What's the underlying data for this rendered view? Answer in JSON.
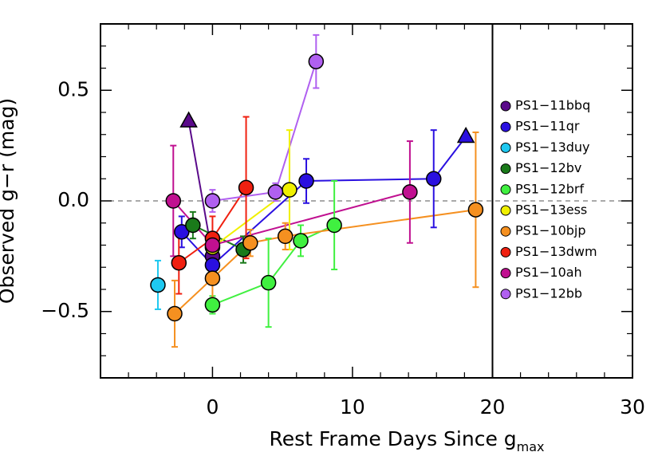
{
  "chart_data": {
    "type": "scatter",
    "xlabel": "Rest Frame Days Since g",
    "xlabel_subscript": "max",
    "ylabel": "Observed g−r (mag)",
    "xlim": [
      -8,
      30
    ],
    "ylim": [
      -0.8,
      0.8
    ],
    "xticks": [
      0,
      10,
      20,
      30
    ],
    "yticks": [
      {
        "value": -0.5,
        "label": "−0.5"
      },
      {
        "value": 0,
        "label": "0.0"
      },
      0.5
    ],
    "xminorticks": [
      -8,
      -6,
      -4,
      -2,
      2,
      4,
      6,
      8,
      12,
      14,
      16,
      18,
      22,
      24,
      26,
      28
    ],
    "yminorticks": [
      -0.8,
      -0.7,
      -0.6,
      -0.4,
      -0.3,
      -0.2,
      -0.1,
      0.1,
      0.2,
      0.3,
      0.4,
      0.6,
      0.7,
      0.8
    ],
    "reference_lines": {
      "x": 20,
      "y": 0
    },
    "series": [
      {
        "name": "PS1−11bbq",
        "color": "#5a0a8a",
        "x": [
          -1.7,
          0
        ],
        "values": [
          0.36,
          -0.25
        ],
        "errors": [
          null,
          0.05
        ],
        "markers": [
          "triangle",
          "circle"
        ]
      },
      {
        "name": "PS1−11qr",
        "color": "#2a10e0",
        "x": [
          -2.2,
          0,
          6.7,
          15.8,
          18.1
        ],
        "values": [
          -0.14,
          -0.29,
          0.09,
          0.1,
          0.29
        ],
        "errors": [
          0.07,
          0.05,
          0.1,
          0.22,
          null
        ],
        "markers": [
          "circle",
          "circle",
          "circle",
          "circle",
          "triangle"
        ]
      },
      {
        "name": "PS1−13duy",
        "color": "#1ec8f0",
        "x": [
          -3.9
        ],
        "values": [
          -0.38
        ],
        "errors": [
          0.11
        ],
        "markers": [
          "circle"
        ]
      },
      {
        "name": "PS1−12bv",
        "color": "#1a7a1a",
        "x": [
          -1.4,
          2.2
        ],
        "values": [
          -0.11,
          -0.22
        ],
        "errors": [
          0.06,
          0.06
        ],
        "markers": [
          "circle",
          "circle"
        ]
      },
      {
        "name": "PS1−12brf",
        "color": "#40f040",
        "x": [
          0,
          4.0,
          6.3,
          8.7
        ],
        "values": [
          -0.47,
          -0.37,
          -0.18,
          -0.11
        ],
        "errors": [
          0.04,
          0.2,
          0.07,
          0.2
        ],
        "markers": [
          "circle",
          "circle",
          "circle",
          "circle"
        ]
      },
      {
        "name": "PS1−13ess",
        "color": "#f0f000",
        "x": [
          0,
          5.5
        ],
        "values": [
          -0.21,
          0.05
        ],
        "errors": [
          0.05,
          0.27
        ],
        "markers": [
          "circle",
          "circle"
        ]
      },
      {
        "name": "PS1−10bjp",
        "color": "#f59020",
        "x": [
          -2.7,
          0,
          2.7,
          5.2,
          18.8
        ],
        "values": [
          -0.51,
          -0.35,
          -0.19,
          -0.16,
          -0.04
        ],
        "errors": [
          0.15,
          0.1,
          0.06,
          0.06,
          0.35
        ],
        "markers": [
          "circle",
          "circle",
          "circle",
          "circle",
          "circle"
        ]
      },
      {
        "name": "PS1−13dwm",
        "color": "#f02010",
        "x": [
          -2.4,
          0,
          2.4
        ],
        "values": [
          -0.28,
          -0.17,
          0.06
        ],
        "errors": [
          0.14,
          0.1,
          0.32
        ],
        "markers": [
          "circle",
          "circle",
          "circle"
        ]
      },
      {
        "name": "PS1−10ah",
        "color": "#c01090",
        "x": [
          -2.8,
          0,
          14.1
        ],
        "values": [
          0.0,
          -0.2,
          0.04
        ],
        "errors": [
          0.25,
          0.06,
          0.23
        ],
        "markers": [
          "circle",
          "circle",
          "circle"
        ]
      },
      {
        "name": "PS1−12bb",
        "color": "#b060f0",
        "x": [
          0,
          4.5,
          7.4
        ],
        "values": [
          0.0,
          0.04,
          0.63
        ],
        "errors": [
          0.05,
          0.04,
          0.12
        ],
        "markers": [
          "circle",
          "circle",
          "circle"
        ]
      }
    ]
  }
}
